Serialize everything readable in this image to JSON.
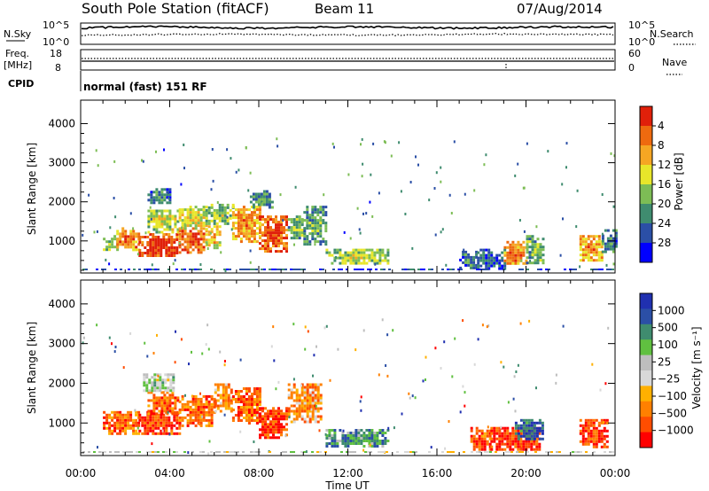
{
  "header": {
    "station": "South Pole Station (fitACF)",
    "beam": "Beam 11",
    "date": "07/Aug/2014"
  },
  "status_panels": {
    "nsky_label": "N.Sky",
    "nsky_ticks": [
      "10^5",
      "10^0"
    ],
    "nsearch_label": "N.Search",
    "nsearch_ticks": [
      "10^5",
      "10^0"
    ],
    "freq_label_1": "Freq.",
    "freq_label_2": "[MHz]",
    "freq_ticks": [
      "18",
      "8"
    ],
    "nave_label": "Nave",
    "nave_ticks": [
      "60",
      "0"
    ],
    "cpid_label": "CPID",
    "cpid_text": "normal (fast) 151 RF"
  },
  "colors": {
    "power_scale": [
      "#0000ff",
      "#2b4fa6",
      "#3f8c6f",
      "#7dbd55",
      "#e8e62a",
      "#f5a623",
      "#ee6a0f",
      "#e0200a"
    ],
    "velocity_scale": [
      "#ff0000",
      "#ff4d00",
      "#ff8000",
      "#ffb000",
      "#d8d8d8",
      "#bebebe",
      "#60c040",
      "#3f8c6f",
      "#2b4fa6",
      "#2030b0"
    ]
  },
  "chart_data": [
    {
      "type": "heatmap",
      "panel": "power",
      "xlabel": "",
      "ylabel": "Slant Range [km]",
      "x_ticks": [
        "00:00",
        "04:00",
        "08:00",
        "12:00",
        "16:00",
        "20:00",
        "00:00"
      ],
      "y_ticks": [
        "1000",
        "2000",
        "3000",
        "4000"
      ],
      "ylim": [
        180,
        4600
      ],
      "xlim_hours": [
        0,
        24
      ],
      "colorbar": {
        "label": "Power [dB]",
        "ticks": [
          "4",
          "8",
          "12",
          "16",
          "20",
          "24",
          "28"
        ]
      },
      "regions": [
        {
          "t": [
            1.0,
            1.6
          ],
          "r": [
            750,
            1150
          ],
          "level": 0.45
        },
        {
          "t": [
            1.6,
            2.6
          ],
          "r": [
            800,
            1350
          ],
          "level": 0.75
        },
        {
          "t": [
            2.6,
            4.4
          ],
          "r": [
            650,
            1200
          ],
          "level": 0.92
        },
        {
          "t": [
            3.0,
            4.4
          ],
          "r": [
            1250,
            1800
          ],
          "level": 0.5
        },
        {
          "t": [
            3.0,
            4.0
          ],
          "r": [
            1950,
            2350
          ],
          "level": 0.25
        },
        {
          "t": [
            4.4,
            5.6
          ],
          "r": [
            700,
            1350
          ],
          "level": 0.85
        },
        {
          "t": [
            4.4,
            5.6
          ],
          "r": [
            1350,
            1900
          ],
          "level": 0.55
        },
        {
          "t": [
            5.6,
            6.3
          ],
          "r": [
            850,
            1400
          ],
          "level": 0.65
        },
        {
          "t": [
            5.6,
            6.8
          ],
          "r": [
            1450,
            1950
          ],
          "level": 0.45
        },
        {
          "t": [
            6.8,
            8.0
          ],
          "r": [
            1000,
            1900
          ],
          "level": 0.7
        },
        {
          "t": [
            7.6,
            8.6
          ],
          "r": [
            1850,
            2300
          ],
          "level": 0.3
        },
        {
          "t": [
            8.0,
            9.3
          ],
          "r": [
            700,
            1650
          ],
          "level": 0.85
        },
        {
          "t": [
            9.3,
            10.0
          ],
          "r": [
            1100,
            1650
          ],
          "level": 0.4
        },
        {
          "t": [
            10.0,
            11.0
          ],
          "r": [
            900,
            1900
          ],
          "level": 0.35
        },
        {
          "t": [
            11.0,
            13.8
          ],
          "r": [
            420,
            800
          ],
          "level": 0.45
        },
        {
          "t": [
            17.0,
            17.8
          ],
          "r": [
            300,
            750
          ],
          "level": 0.25
        },
        {
          "t": [
            17.8,
            19.0
          ],
          "r": [
            300,
            800
          ],
          "level": 0.2
        },
        {
          "t": [
            19.0,
            20.0
          ],
          "r": [
            400,
            1000
          ],
          "level": 0.75
        },
        {
          "t": [
            20.0,
            20.8
          ],
          "r": [
            450,
            1150
          ],
          "level": 0.4
        },
        {
          "t": [
            22.4,
            23.4
          ],
          "r": [
            500,
            1150
          ],
          "level": 0.7
        },
        {
          "t": [
            23.4,
            24.0
          ],
          "r": [
            700,
            1300
          ],
          "level": 0.3
        }
      ]
    },
    {
      "type": "heatmap",
      "panel": "velocity",
      "xlabel": "Time UT",
      "ylabel": "Slant Range [km]",
      "x_ticks": [
        "00:00",
        "04:00",
        "08:00",
        "12:00",
        "16:00",
        "20:00",
        "00:00"
      ],
      "y_ticks": [
        "1000",
        "2000",
        "3000",
        "4000"
      ],
      "ylim": [
        180,
        4600
      ],
      "xlim_hours": [
        0,
        24
      ],
      "colorbar": {
        "label": "Velocity [m s⁻¹]",
        "ticks": [
          "1000",
          "500",
          "100",
          "25",
          "−25",
          "−100",
          "−500",
          "−1000"
        ]
      },
      "regions": [
        {
          "t": [
            1.0,
            2.6
          ],
          "r": [
            700,
            1300
          ],
          "level": 0.2
        },
        {
          "t": [
            2.6,
            4.4
          ],
          "r": [
            700,
            1300
          ],
          "level": 0.15
        },
        {
          "t": [
            3.0,
            4.4
          ],
          "r": [
            1250,
            1800
          ],
          "level": 0.18
        },
        {
          "t": [
            2.8,
            4.2
          ],
          "r": [
            1800,
            2250
          ],
          "level": 0.55
        },
        {
          "t": [
            4.4,
            6.0
          ],
          "r": [
            900,
            1700
          ],
          "level": 0.2
        },
        {
          "t": [
            6.0,
            6.8
          ],
          "r": [
            1300,
            2000
          ],
          "level": 0.3
        },
        {
          "t": [
            6.8,
            8.0
          ],
          "r": [
            1000,
            1900
          ],
          "level": 0.18
        },
        {
          "t": [
            8.0,
            9.3
          ],
          "r": [
            600,
            1400
          ],
          "level": 0.12
        },
        {
          "t": [
            9.3,
            10.8
          ],
          "r": [
            1000,
            2000
          ],
          "level": 0.28
        },
        {
          "t": [
            11.0,
            13.8
          ],
          "r": [
            420,
            850
          ],
          "level": 0.72
        },
        {
          "t": [
            17.5,
            18.4
          ],
          "r": [
            300,
            900
          ],
          "level": 0.15
        },
        {
          "t": [
            18.4,
            20.6
          ],
          "r": [
            300,
            900
          ],
          "level": 0.13
        },
        {
          "t": [
            19.5,
            20.8
          ],
          "r": [
            600,
            1100
          ],
          "level": 0.85
        },
        {
          "t": [
            22.4,
            23.6
          ],
          "r": [
            400,
            1100
          ],
          "level": 0.12
        }
      ]
    }
  ]
}
